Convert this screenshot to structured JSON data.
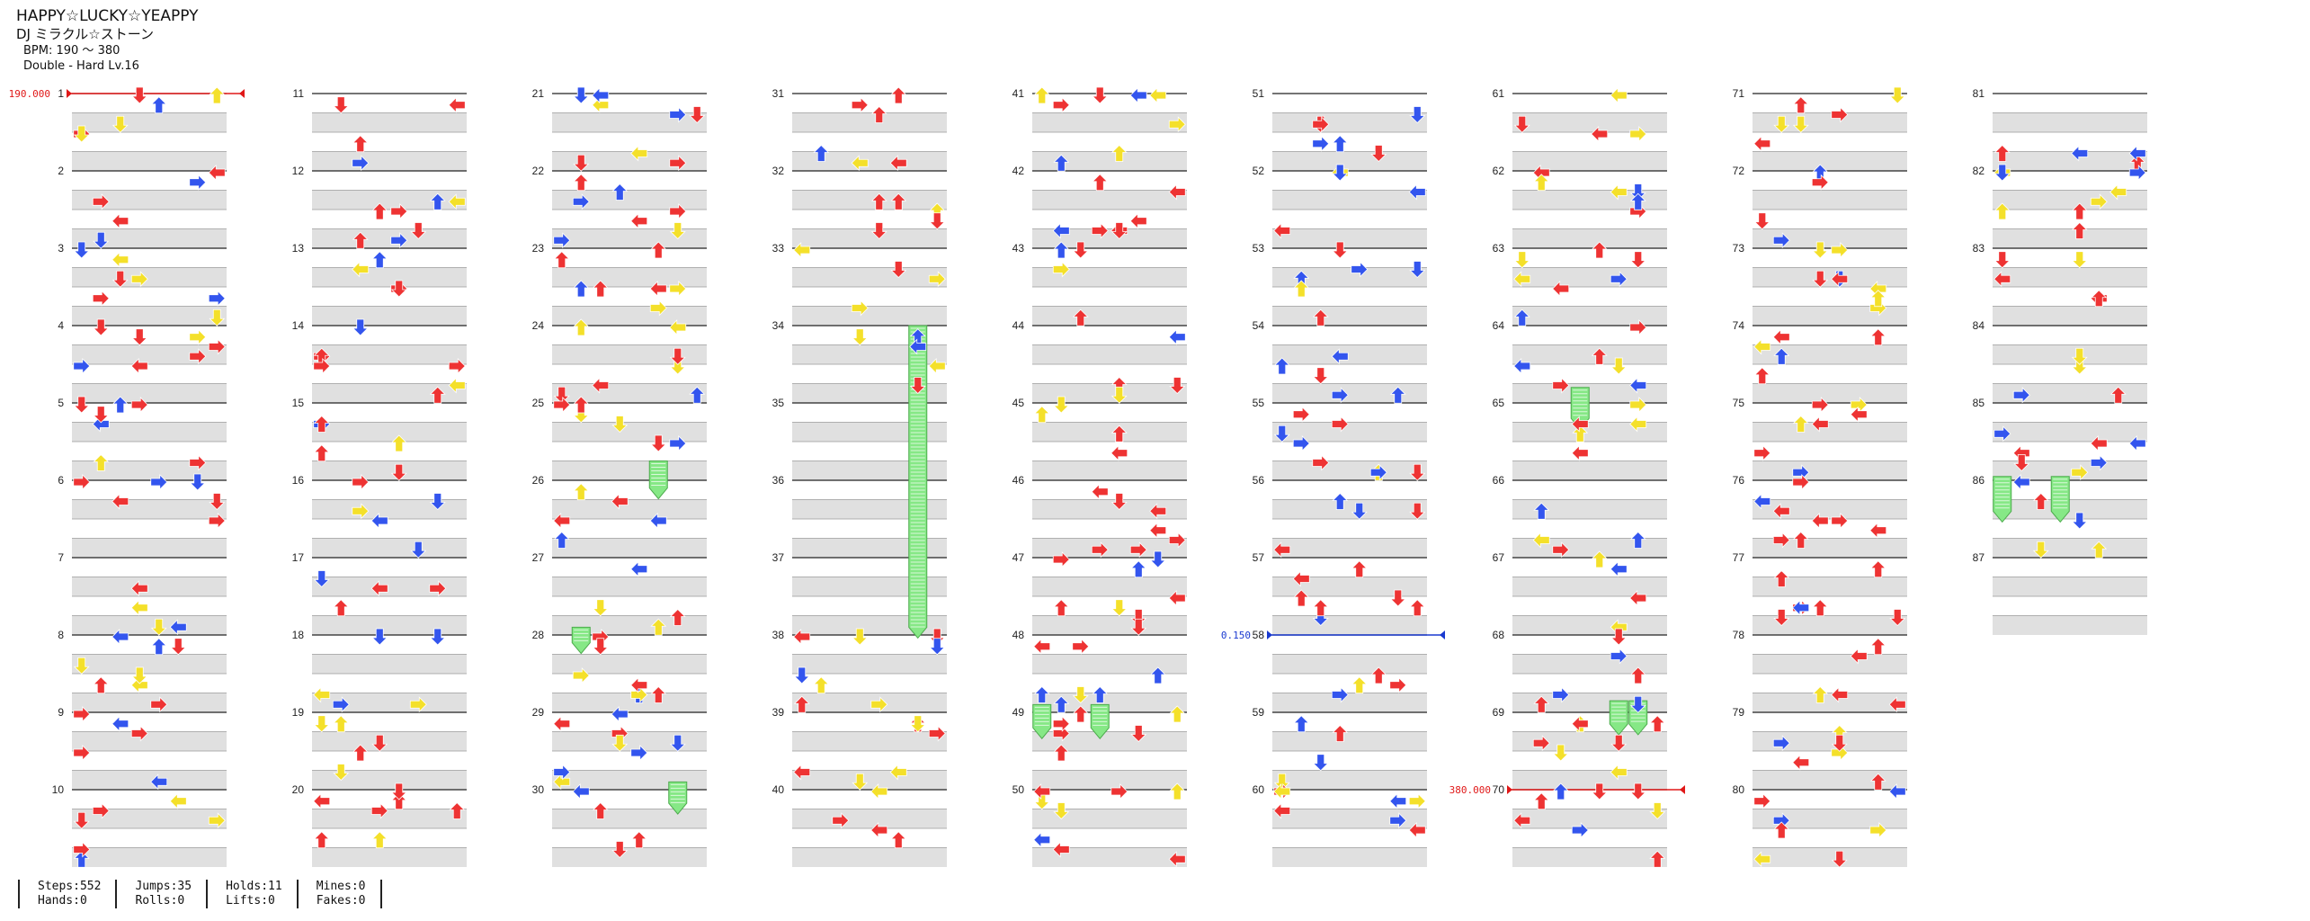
{
  "song": {
    "title": "HAPPY☆LUCKY☆YEAPPY",
    "artist": "DJ ミラクル☆ストーン",
    "bpm_text": "BPM: 190 ～ 380",
    "difficulty_text": "Double - Hard Lv.16"
  },
  "measure_labels": [
    "1",
    "2",
    "3",
    "4",
    "5",
    "6",
    "7",
    "8",
    "9",
    "10",
    "11",
    "12",
    "13",
    "14",
    "15",
    "16",
    "17",
    "18",
    "19",
    "20",
    "21",
    "22",
    "23",
    "24",
    "25",
    "26",
    "27",
    "28",
    "29",
    "30",
    "31",
    "32",
    "33",
    "34",
    "35",
    "36",
    "37",
    "38",
    "39",
    "40",
    "41",
    "42",
    "43",
    "44",
    "45",
    "46",
    "47",
    "48",
    "49",
    "50",
    "51",
    "52",
    "53",
    "54",
    "55",
    "56",
    "57",
    "58",
    "59",
    "60",
    "61",
    "62",
    "63",
    "64",
    "65",
    "66",
    "67",
    "68",
    "69",
    "70",
    "71",
    "72",
    "73",
    "74",
    "75",
    "76",
    "77",
    "78",
    "79",
    "80",
    "81",
    "82",
    "83",
    "84",
    "85",
    "86",
    "87"
  ],
  "total_measures": 87,
  "bpm_changes": [
    {
      "measure": 1,
      "beat": 0,
      "label": "190.000",
      "color": "#e01818"
    },
    {
      "measure": 58,
      "beat": 0,
      "label": "0.150",
      "color": "#1a3ad0"
    },
    {
      "measure": 70,
      "beat": 0,
      "label": "380.000",
      "color": "#e01818"
    }
  ],
  "colors": {
    "red_arrow": "#ee3333",
    "blue_arrow": "#3355ee",
    "yellow_arrow": "#f4e02a",
    "hold_body": "#86e886",
    "stripe": "#e0e0e0",
    "measure_line": "#222222"
  },
  "notes": [],
  "holds": [
    {
      "measure": 34,
      "beat": 0,
      "end_measure": 37,
      "end_beat": 3.6,
      "lane": 6
    },
    {
      "measure": 25,
      "beat": 3,
      "end_measure": 26,
      "end_beat": 0.4,
      "lane": 5
    },
    {
      "measure": 27,
      "beat": 3.6,
      "end_measure": 28,
      "end_beat": 0.4,
      "lane": 1
    },
    {
      "measure": 29,
      "beat": 3.6,
      "end_measure": 30,
      "end_beat": 0.7,
      "lane": 6
    },
    {
      "measure": 48,
      "beat": 3.6,
      "end_measure": 49,
      "end_beat": 0.8,
      "lane": 0
    },
    {
      "measure": 48,
      "beat": 3.6,
      "end_measure": 49,
      "end_beat": 0.8,
      "lane": 3
    },
    {
      "measure": 64,
      "beat": 3.2,
      "end_measure": 65,
      "end_beat": 0.8,
      "lane": 3
    },
    {
      "measure": 68,
      "beat": 3.4,
      "end_measure": 69,
      "end_beat": 0.6,
      "lane": 5
    },
    {
      "measure": 68,
      "beat": 3.4,
      "end_measure": 69,
      "end_beat": 0.6,
      "lane": 6
    },
    {
      "measure": 85,
      "beat": 3.8,
      "end_measure": 86,
      "end_beat": 1.6,
      "lane": 0
    },
    {
      "measure": 85,
      "beat": 3.8,
      "end_measure": 86,
      "end_beat": 1.6,
      "lane": 3
    }
  ],
  "stats": [
    {
      "label1": "Steps:",
      "value1": "552",
      "label2": "Hands:",
      "value2": "0"
    },
    {
      "label1": "Jumps:",
      "value1": "35",
      "label2": "Rolls:",
      "value2": "0"
    },
    {
      "label1": "Holds:",
      "value1": "11",
      "label2": "Lifts:",
      "value2": "0"
    },
    {
      "label1": "Mines:",
      "value1": "0",
      "label2": "Fakes:",
      "value2": "0"
    }
  ]
}
